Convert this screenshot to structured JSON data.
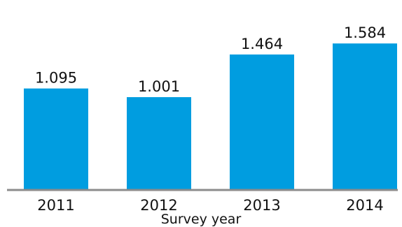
{
  "chart_data": {
    "type": "bar",
    "categories": [
      "2011",
      "2012",
      "2013",
      "2014"
    ],
    "values": [
      1.095,
      1.001,
      1.464,
      1.584
    ],
    "data_labels": [
      "1.095",
      "1.001",
      "1.464",
      "1.584"
    ],
    "title": "",
    "xlabel": "Survey year",
    "ylabel": "",
    "ylim": [
      0,
      1.7
    ],
    "grid": false,
    "legend": "none",
    "bar_color": "#009de0"
  }
}
